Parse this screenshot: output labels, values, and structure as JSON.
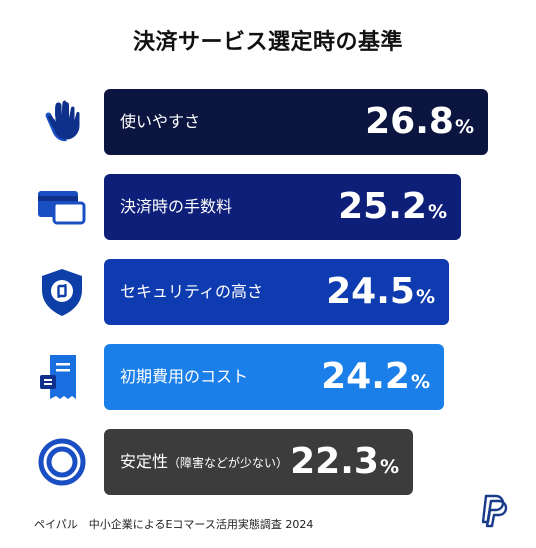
{
  "title": "決済サービス選定時の基準",
  "chart_data": {
    "type": "bar",
    "title": "決済サービス選定時の基準",
    "categories": [
      "使いやすさ",
      "決済時の手数料",
      "セキュリティの高さ",
      "初期費用のコスト",
      "安定性"
    ],
    "category_notes": [
      "",
      "",
      "",
      "",
      "（障害などが少ない）"
    ],
    "values": [
      26.8,
      25.2,
      24.5,
      24.2,
      22.3
    ],
    "unit": "%",
    "colors": [
      "#0b1540",
      "#0e1f7a",
      "#0f3bb0",
      "#1a7fe8",
      "#3c3c3c"
    ],
    "icons": [
      "waving-hands-icon",
      "credit-card-icon",
      "security-shield-icon",
      "receipt-invoice-icon",
      "stability-rings-icon"
    ]
  },
  "footer": "ペイパル　中小企業によるEコマース活用実態調査 2024",
  "logo": "paypal-logo"
}
